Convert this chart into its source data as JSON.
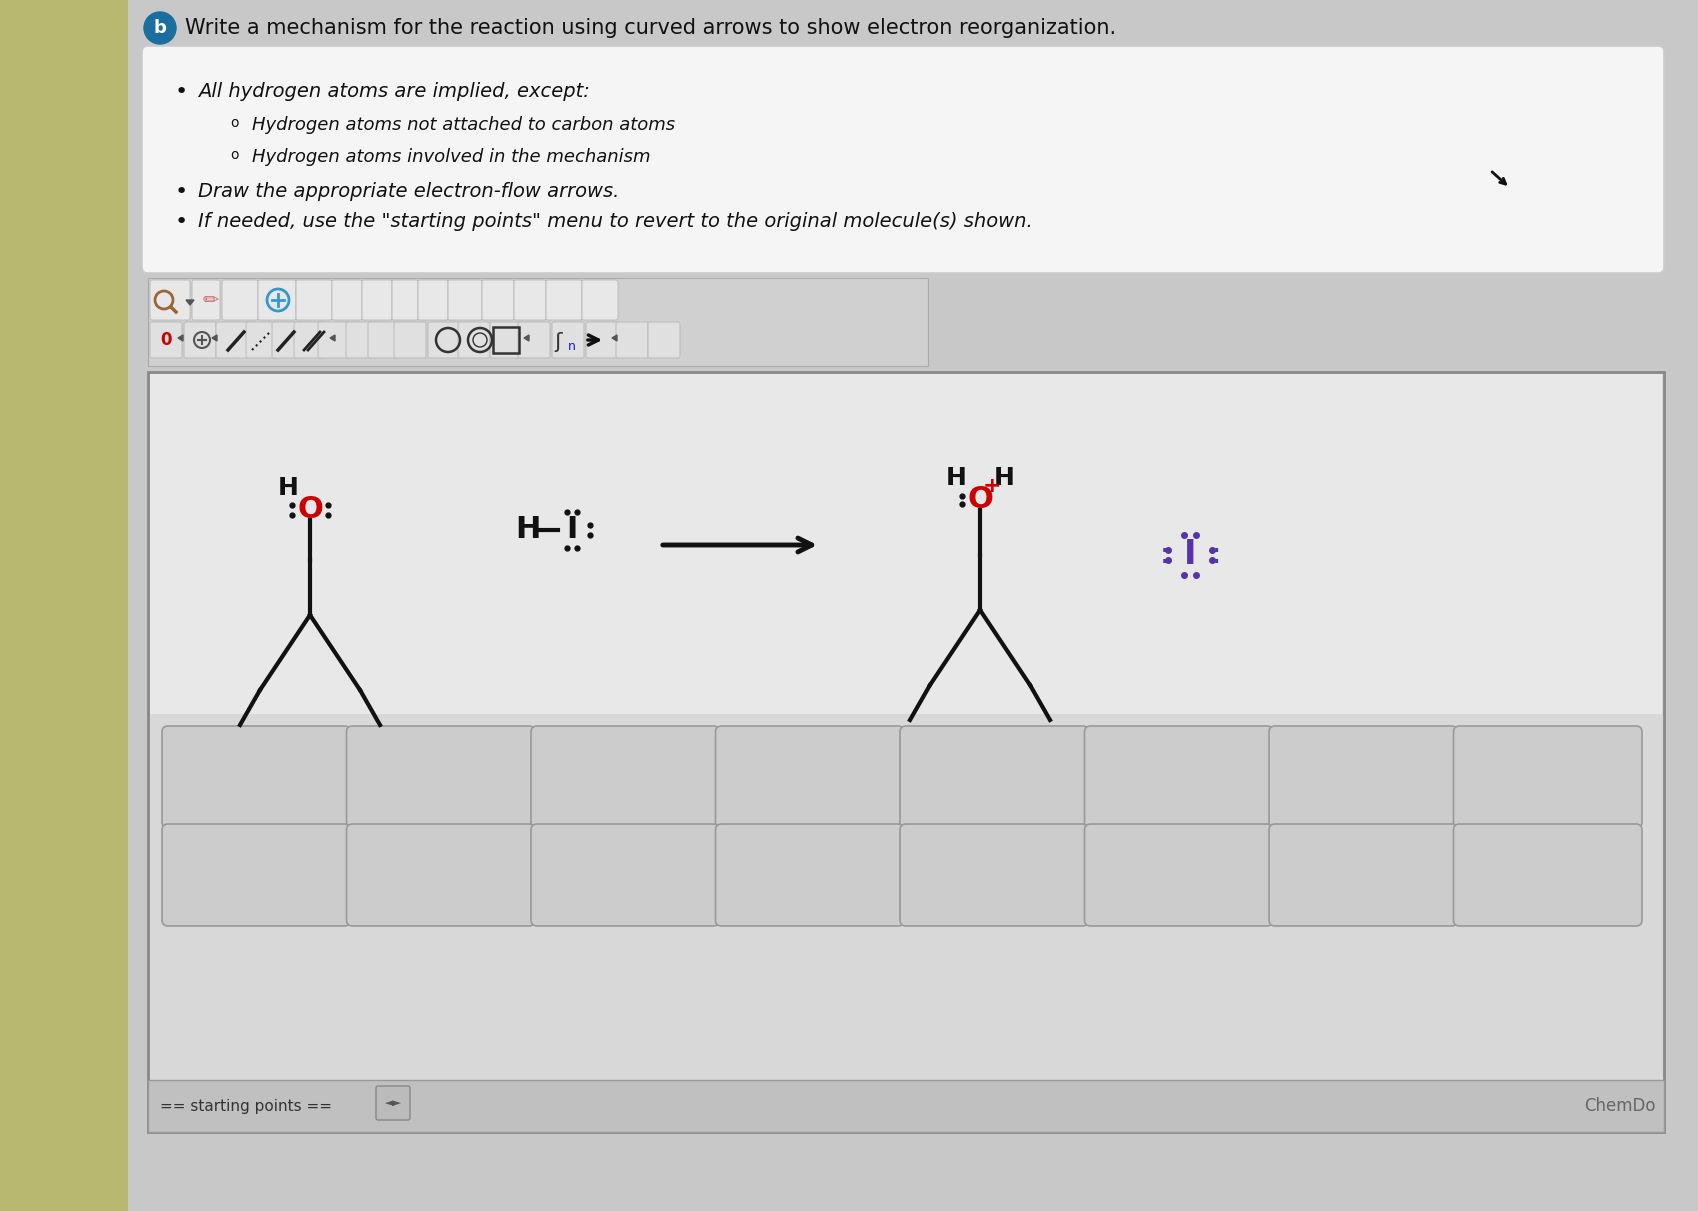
{
  "bg_color": "#c8c8c8",
  "sidebar_color": "#b8b870",
  "title": "Write a mechanism for the reaction using curved arrows to show electron reorganization.",
  "instr_box_bg": "#f5f5f5",
  "instr_box_border": "#cccccc",
  "canvas_bg": "#d8d8d8",
  "canvas_upper_bg": "#e8e8e8",
  "tiles_bg": "#c0c0c0",
  "bottom_bar_bg": "#c8c8c8",
  "b_circle_color": "#1a6fa0",
  "O_color": "#cc0000",
  "H_color": "#111111",
  "I_reactant_color": "#111111",
  "I_product_color": "#5533aa",
  "bond_color": "#111111",
  "arrow_color": "#111111",
  "lone_pair_color": "#111111",
  "plus_color": "#cc0000",
  "chemdraw_label": "ChemDo",
  "starting_points_label": "== starting points =="
}
